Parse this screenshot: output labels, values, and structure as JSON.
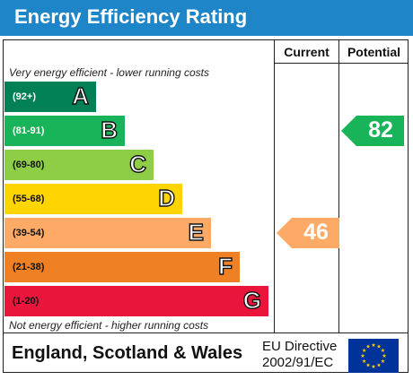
{
  "header": {
    "title": "Energy Efficiency Rating"
  },
  "columns": {
    "current": "Current",
    "potential": "Potential"
  },
  "notes": {
    "top": "Very energy efficient - lower running costs",
    "bottom": "Not energy efficient - higher running costs"
  },
  "chart_data": {
    "type": "bar",
    "title": "Energy Efficiency Rating",
    "categories": [
      "A",
      "B",
      "C",
      "D",
      "E",
      "F",
      "G"
    ],
    "bands": [
      {
        "letter": "A",
        "range": "(92+)",
        "color": "#008054",
        "text_color": "#ffffff"
      },
      {
        "letter": "B",
        "range": "(81-91)",
        "color": "#19b459",
        "text_color": "#ffffff"
      },
      {
        "letter": "C",
        "range": "(69-80)",
        "color": "#8dce46",
        "text_color": "#111111"
      },
      {
        "letter": "D",
        "range": "(55-68)",
        "color": "#ffd500",
        "text_color": "#111111"
      },
      {
        "letter": "E",
        "range": "(39-54)",
        "color": "#fcaa65",
        "text_color": "#111111"
      },
      {
        "letter": "F",
        "range": "(21-38)",
        "color": "#ef8023",
        "text_color": "#111111"
      },
      {
        "letter": "G",
        "range": "(1-20)",
        "color": "#e9153b",
        "text_color": "#111111"
      }
    ],
    "current": {
      "value": 46,
      "band": "E",
      "color": "#fcaa65"
    },
    "potential": {
      "value": 82,
      "band": "B",
      "color": "#19b459"
    }
  },
  "footer": {
    "country": "England, Scotland & Wales",
    "directive_line1": "EU Directive",
    "directive_line2": "2002/91/EC"
  },
  "colors": {
    "title_bar": "#1e86c8",
    "eu_flag_blue": "#003399",
    "eu_flag_star": "#ffcc00"
  }
}
